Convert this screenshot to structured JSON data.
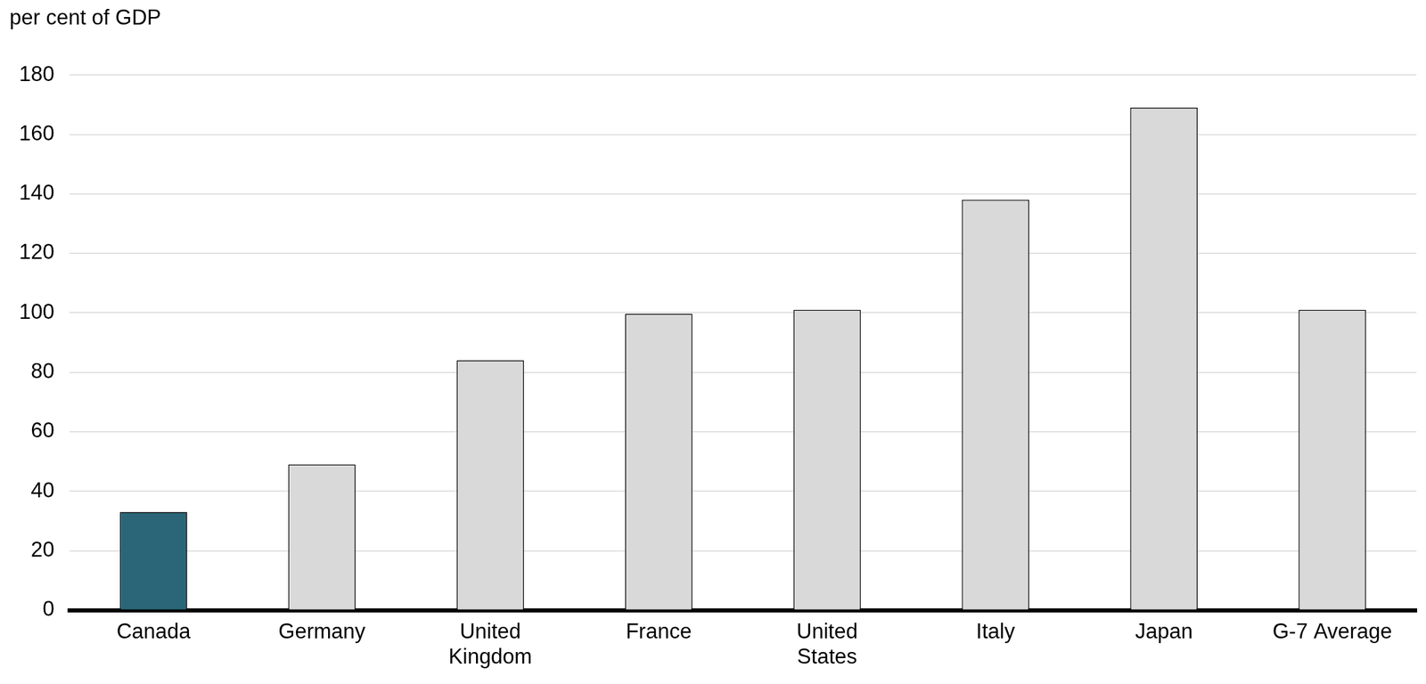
{
  "chart_data": {
    "type": "bar",
    "y_label": "per cent of GDP",
    "categories": [
      "Canada",
      "Germany",
      "United Kingdom",
      "France",
      "United States",
      "Italy",
      "Japan",
      "G-7 Average"
    ],
    "values": [
      33,
      49,
      84,
      99.7,
      101,
      138,
      169,
      101
    ],
    "colors": [
      "#2a6677",
      "#d9d9d9",
      "#d9d9d9",
      "#d9d9d9",
      "#d9d9d9",
      "#d9d9d9",
      "#d9d9d9",
      "#d9d9d9"
    ],
    "ylim": [
      0,
      180
    ],
    "yticks": [
      0,
      20,
      40,
      60,
      80,
      100,
      120,
      140,
      160,
      180
    ],
    "grid": true
  }
}
